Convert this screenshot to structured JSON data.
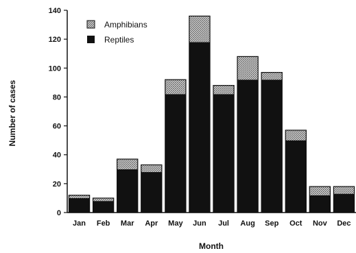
{
  "chart_data": {
    "type": "bar",
    "stacked": true,
    "title": "",
    "xlabel": "Month",
    "ylabel": "Number of cases",
    "ylim": [
      0,
      140
    ],
    "yticks": [
      0,
      20,
      40,
      60,
      80,
      100,
      120,
      140
    ],
    "grid": false,
    "legend_position": "top-left",
    "categories": [
      "Jan",
      "Feb",
      "Mar",
      "Apr",
      "May",
      "Jun",
      "Jul",
      "Aug",
      "Sep",
      "Oct",
      "Nov",
      "Dec"
    ],
    "series": [
      {
        "name": "Reptiles",
        "color": "#111111",
        "pattern": "solid",
        "values": [
          10,
          8,
          30,
          28,
          82,
          118,
          82,
          92,
          92,
          50,
          12,
          13
        ]
      },
      {
        "name": "Amphibians",
        "color": "#999999",
        "pattern": "stippled",
        "values": [
          2,
          2,
          7,
          5,
          10,
          18,
          6,
          16,
          5,
          7,
          6,
          5
        ]
      }
    ],
    "legend_order": [
      "Amphibians",
      "Reptiles"
    ]
  }
}
